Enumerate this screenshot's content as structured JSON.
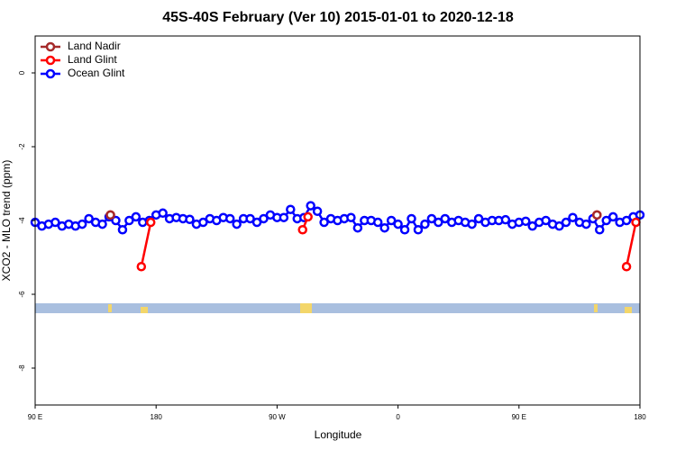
{
  "chart_data": {
    "type": "line",
    "title": "45S-40S February (Ver 10)   2015-01-01 to 2020-12-18",
    "xlabel": "Longitude",
    "ylabel": "XCO2 - MLO trend (ppm)",
    "xlim": [
      90,
      540
    ],
    "ylim": [
      -9,
      1
    ],
    "xticks": [
      {
        "value": 90,
        "label": "90 E"
      },
      180,
      {
        "value": 270,
        "label": "90 W"
      },
      {
        "value": 360,
        "label": "0"
      },
      {
        "value": 450,
        "label": "90 E"
      },
      {
        "value": 540,
        "label": "180"
      }
    ],
    "yticks": [
      0,
      -2,
      -4,
      -6,
      -8
    ],
    "legend": "top-left",
    "series": [
      {
        "name": "Land Nadir",
        "color": "#a52a2a",
        "x": [
          146,
          508
        ],
        "values": [
          -3.85,
          -3.85
        ]
      },
      {
        "name": "Land Glint",
        "color": "#ff0000",
        "x": [
          146,
          169,
          176,
          289,
          293,
          508,
          530,
          537
        ],
        "values": [
          -3.85,
          -5.25,
          -4.05,
          -4.25,
          -3.9,
          -3.85,
          -5.25,
          -4.05
        ]
      },
      {
        "name": "Ocean Glint",
        "color": "#0000ff",
        "x": [
          90,
          95,
          100,
          105,
          110,
          115,
          120,
          125,
          130,
          135,
          140,
          145,
          150,
          155,
          160,
          165,
          170,
          175,
          180,
          185,
          190,
          195,
          200,
          205,
          210,
          215,
          220,
          225,
          230,
          235,
          240,
          245,
          250,
          255,
          260,
          265,
          270,
          275,
          280,
          285,
          290,
          295,
          300,
          305,
          310,
          315,
          320,
          325,
          330,
          335,
          340,
          345,
          350,
          355,
          360,
          365,
          370,
          375,
          380,
          385,
          390,
          395,
          400,
          405,
          410,
          415,
          420,
          425,
          430,
          435,
          440,
          445,
          450,
          455,
          460,
          465,
          470,
          475,
          480,
          485,
          490,
          495,
          500,
          505,
          510,
          515,
          520,
          525,
          530,
          535,
          540
        ],
        "values": [
          -4.05,
          -4.15,
          -4.1,
          -4.05,
          -4.15,
          -4.1,
          -4.15,
          -4.1,
          -3.95,
          -4.05,
          -4.1,
          -3.9,
          -4.0,
          -4.25,
          -4.0,
          -3.9,
          -4.05,
          -4.0,
          -3.85,
          -3.8,
          -3.95,
          -3.92,
          -3.95,
          -3.97,
          -4.1,
          -4.05,
          -3.95,
          -4.0,
          -3.92,
          -3.95,
          -4.1,
          -3.95,
          -3.95,
          -4.05,
          -3.95,
          -3.85,
          -3.92,
          -3.92,
          -3.7,
          -3.95,
          -3.92,
          -3.6,
          -3.75,
          -4.05,
          -3.95,
          -4.0,
          -3.95,
          -3.92,
          -4.2,
          -4.0,
          -4.0,
          -4.05,
          -4.2,
          -4.0,
          -4.1,
          -4.25,
          -3.95,
          -4.25,
          -4.1,
          -3.95,
          -4.05,
          -3.95,
          -4.05,
          -4.0,
          -4.05,
          -4.1,
          -3.95,
          -4.05,
          -4.0,
          -4.0,
          -3.98,
          -4.1,
          -4.05,
          -4.02,
          -4.15,
          -4.05,
          -4.0,
          -4.1,
          -4.15,
          -4.05,
          -3.92,
          -4.05,
          -4.1,
          -3.95,
          -4.25,
          -4.0,
          -3.9,
          -4.05,
          -4.0,
          -3.9,
          -3.85
        ]
      }
    ]
  }
}
